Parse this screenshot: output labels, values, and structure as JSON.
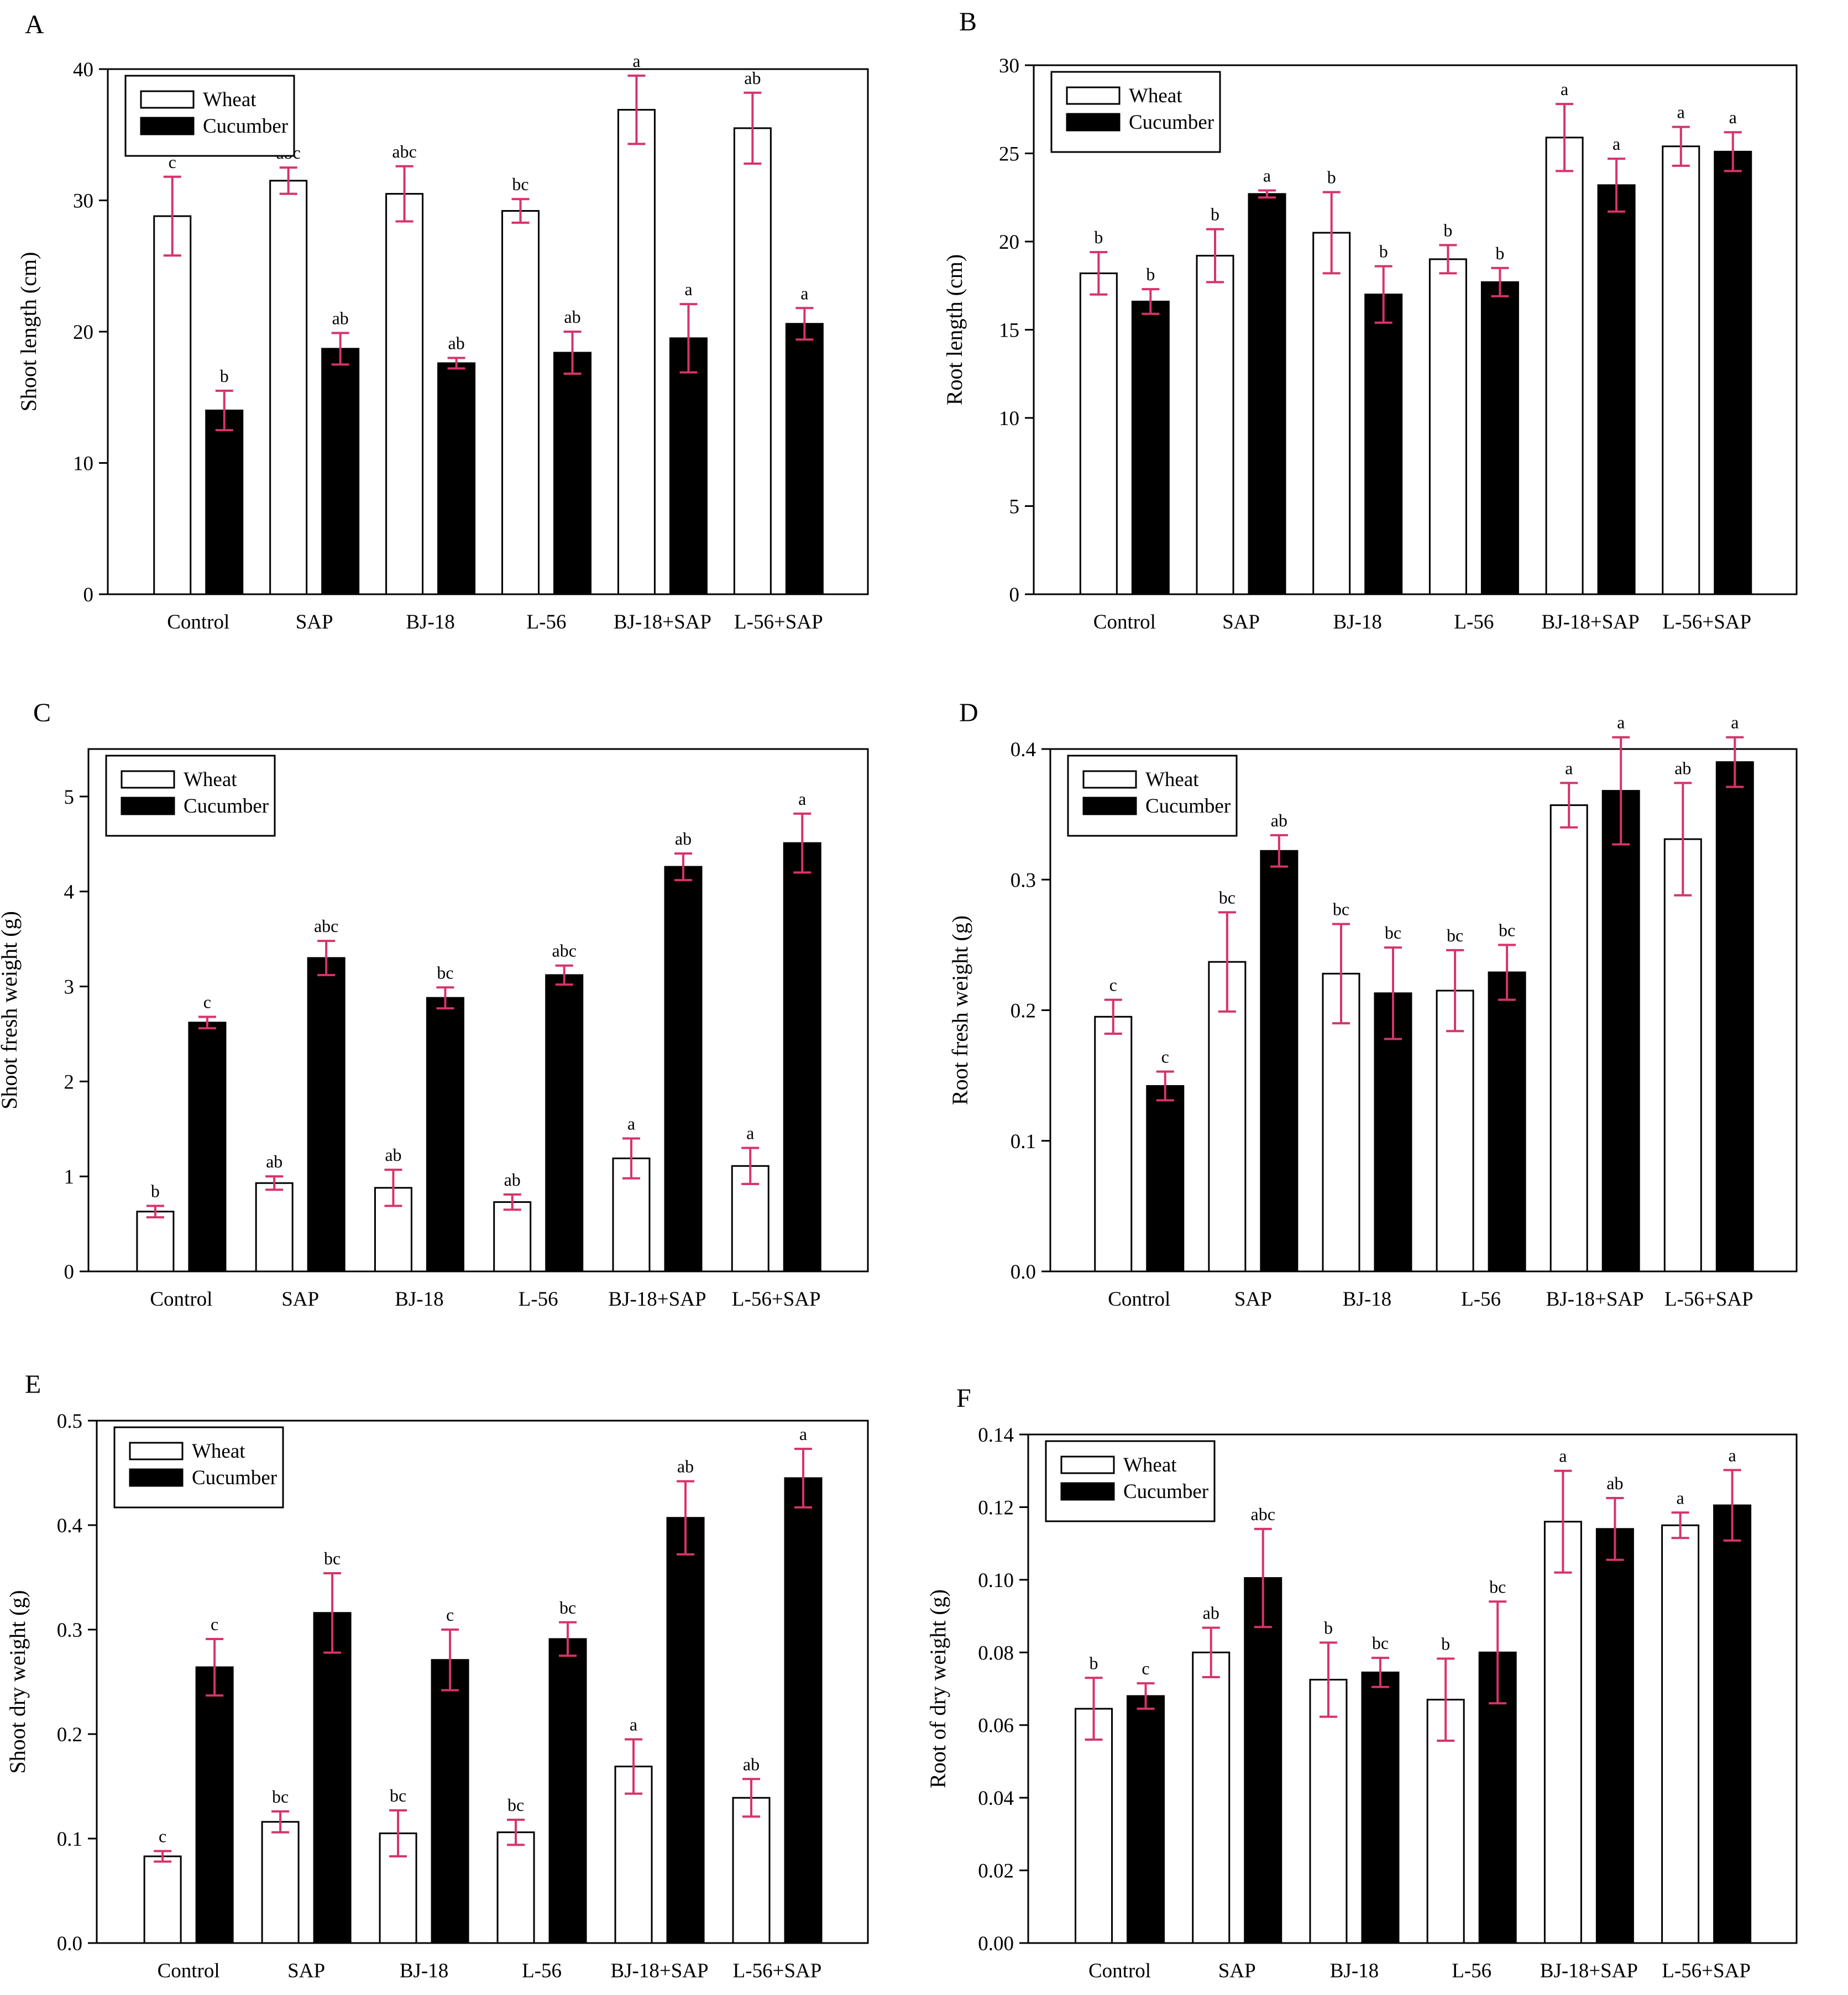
{
  "colors": {
    "wheat_fill": "#ffffff",
    "cucumber_fill": "#000000",
    "error_bar": "#d6336c",
    "axis": "#000000"
  },
  "chart_data": [
    {
      "panel": "A",
      "type": "bar",
      "title": "",
      "xlabel": "",
      "ylabel": "Shoot length (cm)",
      "categories": [
        "Control",
        "SAP",
        "BJ-18",
        "L-56",
        "BJ-18+SAP",
        "L-56+SAP"
      ],
      "ylim": [
        0,
        40
      ],
      "yticks": [
        "0",
        "10",
        "20",
        "30",
        "40"
      ],
      "legend": {
        "position": "top-left"
      },
      "series": [
        {
          "name": "Wheat",
          "values": [
            28.8,
            31.5,
            30.5,
            29.2,
            36.9,
            35.5
          ],
          "errors": [
            3.0,
            1.0,
            2.1,
            0.9,
            2.6,
            2.7
          ],
          "letters": [
            "c",
            "abc",
            "abc",
            "bc",
            "a",
            "ab"
          ]
        },
        {
          "name": "Cucumber",
          "values": [
            14.0,
            18.7,
            17.6,
            18.4,
            19.5,
            20.6
          ],
          "errors": [
            1.5,
            1.2,
            0.4,
            1.6,
            2.6,
            1.2
          ],
          "letters": [
            "b",
            "ab",
            "ab",
            "ab",
            "a",
            "a"
          ]
        }
      ]
    },
    {
      "panel": "B",
      "type": "bar",
      "title": "",
      "xlabel": "",
      "ylabel": "Root length (cm)",
      "categories": [
        "Control",
        "SAP",
        "BJ-18",
        "L-56",
        "BJ-18+SAP",
        "L-56+SAP"
      ],
      "ylim": [
        0,
        30
      ],
      "yticks": [
        "0",
        "5",
        "10",
        "15",
        "20",
        "25",
        "30"
      ],
      "legend": {
        "position": "top-left"
      },
      "series": [
        {
          "name": "Wheat",
          "values": [
            18.2,
            19.2,
            20.5,
            19.0,
            25.9,
            25.4
          ],
          "errors": [
            1.2,
            1.5,
            2.3,
            0.8,
            1.9,
            1.1
          ],
          "letters": [
            "b",
            "b",
            "b",
            "b",
            "a",
            "a"
          ]
        },
        {
          "name": "Cucumber",
          "values": [
            16.6,
            22.7,
            17.0,
            17.7,
            23.2,
            25.1
          ],
          "errors": [
            0.7,
            0.2,
            1.6,
            0.8,
            1.5,
            1.1
          ],
          "letters": [
            "b",
            "a",
            "b",
            "b",
            "a",
            "a"
          ]
        }
      ]
    },
    {
      "panel": "C",
      "type": "bar",
      "title": "",
      "xlabel": "",
      "ylabel": "Shoot fresh weight (g)",
      "categories": [
        "Control",
        "SAP",
        "BJ-18",
        "L-56",
        "BJ-18+SAP",
        "L-56+SAP"
      ],
      "ylim": [
        0,
        5.5
      ],
      "yticks": [
        "0",
        "1",
        "2",
        "3",
        "4",
        "5"
      ],
      "legend": {
        "position": "top-left"
      },
      "series": [
        {
          "name": "Wheat",
          "values": [
            0.63,
            0.93,
            0.88,
            0.73,
            1.19,
            1.11
          ],
          "errors": [
            0.06,
            0.07,
            0.19,
            0.08,
            0.21,
            0.19
          ],
          "letters": [
            "b",
            "ab",
            "ab",
            "ab",
            "a",
            "a"
          ]
        },
        {
          "name": "Cucumber",
          "values": [
            2.62,
            3.3,
            2.88,
            3.12,
            4.26,
            4.51
          ],
          "errors": [
            0.06,
            0.18,
            0.11,
            0.1,
            0.14,
            0.31
          ],
          "letters": [
            "c",
            "abc",
            "bc",
            "abc",
            "ab",
            "a"
          ]
        }
      ]
    },
    {
      "panel": "D",
      "type": "bar",
      "title": "",
      "xlabel": "",
      "ylabel": "Root fresh weight (g)",
      "categories": [
        "Control",
        "SAP",
        "BJ-18",
        "L-56",
        "BJ-18+SAP",
        "L-56+SAP"
      ],
      "ylim": [
        0,
        0.4
      ],
      "yticks": [
        "0.0",
        "0.1",
        "0.2",
        "0.3",
        "0.4"
      ],
      "legend": {
        "position": "top-left"
      },
      "series": [
        {
          "name": "Wheat",
          "values": [
            0.195,
            0.237,
            0.228,
            0.215,
            0.357,
            0.331
          ],
          "errors": [
            0.013,
            0.038,
            0.038,
            0.031,
            0.017,
            0.043
          ],
          "letters": [
            "c",
            "bc",
            "bc",
            "bc",
            "a",
            "ab"
          ]
        },
        {
          "name": "Cucumber",
          "values": [
            0.142,
            0.322,
            0.213,
            0.229,
            0.368,
            0.39
          ],
          "errors": [
            0.011,
            0.012,
            0.035,
            0.021,
            0.041,
            0.019
          ],
          "letters": [
            "c",
            "ab",
            "bc",
            "bc",
            "a",
            "a"
          ]
        }
      ]
    },
    {
      "panel": "E",
      "type": "bar",
      "title": "",
      "xlabel": "",
      "ylabel": "Shoot dry weight (g)",
      "categories": [
        "Control",
        "SAP",
        "BJ-18",
        "L-56",
        "BJ-18+SAP",
        "L-56+SAP"
      ],
      "ylim": [
        0,
        0.5
      ],
      "yticks": [
        "0.0",
        "0.1",
        "0.2",
        "0.3",
        "0.4",
        "0.5"
      ],
      "legend": {
        "position": "top-left"
      },
      "series": [
        {
          "name": "Wheat",
          "values": [
            0.083,
            0.116,
            0.105,
            0.106,
            0.169,
            0.139
          ],
          "errors": [
            0.005,
            0.01,
            0.022,
            0.012,
            0.026,
            0.018
          ],
          "letters": [
            "c",
            "bc",
            "bc",
            "bc",
            "a",
            "ab"
          ]
        },
        {
          "name": "Cucumber",
          "values": [
            0.264,
            0.316,
            0.271,
            0.291,
            0.407,
            0.445
          ],
          "errors": [
            0.027,
            0.038,
            0.029,
            0.016,
            0.035,
            0.028
          ],
          "letters": [
            "c",
            "bc",
            "c",
            "bc",
            "ab",
            "a"
          ]
        }
      ]
    },
    {
      "panel": "F",
      "type": "bar",
      "title": "",
      "xlabel": "",
      "ylabel": "Root of dry weight (g)",
      "categories": [
        "Control",
        "SAP",
        "BJ-18",
        "L-56",
        "BJ-18+SAP",
        "L-56+SAP"
      ],
      "ylim": [
        0,
        0.14
      ],
      "yticks": [
        "0.00",
        "0.02",
        "0.04",
        "0.06",
        "0.08",
        "0.10",
        "0.12",
        "0.14"
      ],
      "legend": {
        "position": "top-left"
      },
      "series": [
        {
          "name": "Wheat",
          "values": [
            0.0645,
            0.08,
            0.0725,
            0.067,
            0.116,
            0.115
          ],
          "errors": [
            0.0085,
            0.0068,
            0.0102,
            0.0113,
            0.014,
            0.0035
          ],
          "letters": [
            "b",
            "ab",
            "b",
            "b",
            "a",
            "a"
          ]
        },
        {
          "name": "Cucumber",
          "values": [
            0.068,
            0.1005,
            0.0745,
            0.08,
            0.114,
            0.1205
          ],
          "errors": [
            0.0035,
            0.0135,
            0.004,
            0.014,
            0.0085,
            0.0097
          ],
          "letters": [
            "c",
            "abc",
            "bc",
            "bc",
            "ab",
            "a"
          ]
        }
      ]
    }
  ]
}
